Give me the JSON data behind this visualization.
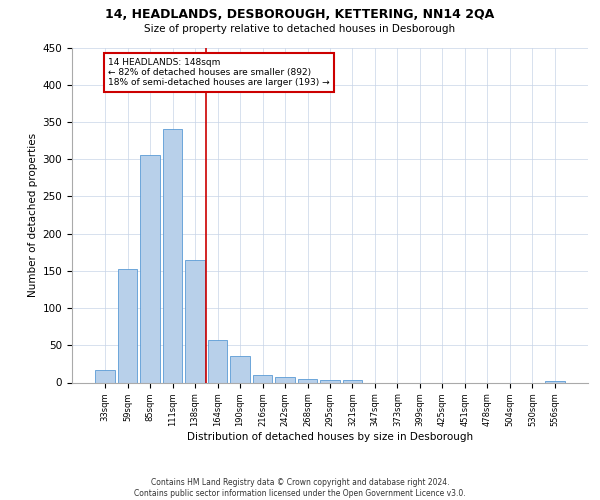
{
  "title1": "14, HEADLANDS, DESBOROUGH, KETTERING, NN14 2QA",
  "title2": "Size of property relative to detached houses in Desborough",
  "xlabel": "Distribution of detached houses by size in Desborough",
  "ylabel": "Number of detached properties",
  "bar_values": [
    17,
    152,
    305,
    340,
    165,
    57,
    35,
    10,
    8,
    5,
    4,
    3,
    0,
    0,
    0,
    0,
    0,
    0,
    0,
    0,
    2
  ],
  "bar_labels": [
    "33sqm",
    "59sqm",
    "85sqm",
    "111sqm",
    "138sqm",
    "164sqm",
    "190sqm",
    "216sqm",
    "242sqm",
    "268sqm",
    "295sqm",
    "321sqm",
    "347sqm",
    "373sqm",
    "399sqm",
    "425sqm",
    "451sqm",
    "478sqm",
    "504sqm",
    "530sqm",
    "556sqm"
  ],
  "bar_color": "#b8d0ea",
  "bar_edge_color": "#5b9bd5",
  "background_color": "#ffffff",
  "grid_color": "#c8d4e8",
  "vline_x": 4.5,
  "vline_color": "#cc0000",
  "annotation_text": "14 HEADLANDS: 148sqm\n← 82% of detached houses are smaller (892)\n18% of semi-detached houses are larger (193) →",
  "annotation_box_color": "#ffffff",
  "annotation_box_edge_color": "#cc0000",
  "ylim": [
    0,
    450
  ],
  "yticks": [
    0,
    50,
    100,
    150,
    200,
    250,
    300,
    350,
    400,
    450
  ],
  "footnote": "Contains HM Land Registry data © Crown copyright and database right 2024.\nContains public sector information licensed under the Open Government Licence v3.0."
}
